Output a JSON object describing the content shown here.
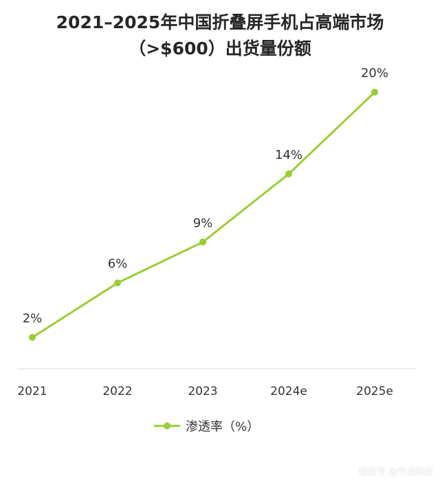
{
  "colors": {
    "series": "#9ACD32",
    "axis": "#d9d9d9",
    "text": "#333333"
  },
  "chart_data": {
    "type": "line",
    "title_line1": "2021–2025年中国折叠屏手机占高端市场",
    "title_line2": "（>$600）出货量份额",
    "categories": [
      "2021",
      "2022",
      "2023",
      "2024e",
      "2025e"
    ],
    "series": [
      {
        "name": "渗透率（%）",
        "values": [
          2,
          6,
          9,
          14,
          20
        ],
        "labels": [
          "2%",
          "6%",
          "9%",
          "14%",
          "20%"
        ]
      }
    ],
    "ylim": [
      0,
      20
    ],
    "grid": false,
    "legend_position": "bottom"
  },
  "watermark": "搜狐号 @节点财经"
}
